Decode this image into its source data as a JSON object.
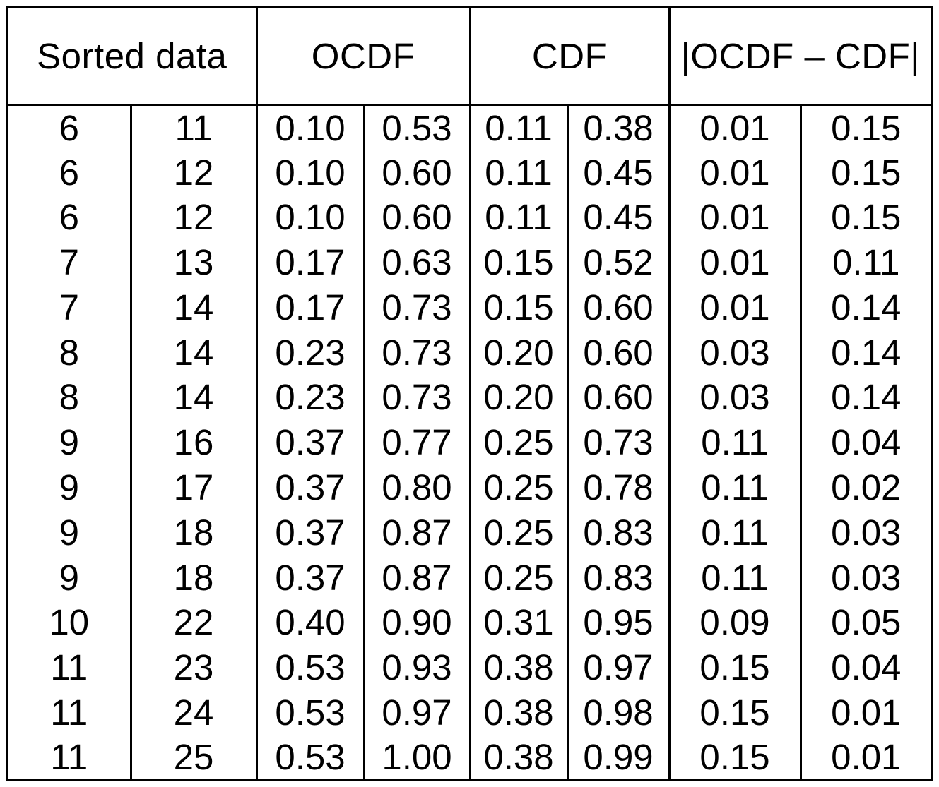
{
  "chart_data": {
    "type": "table",
    "title": "",
    "column_groups": [
      {
        "label": "Sorted data"
      },
      {
        "label": "OCDF"
      },
      {
        "label": "CDF"
      },
      {
        "label": "|OCDF – CDF|"
      }
    ],
    "columns_per_group": 2,
    "rows": [
      [
        "6",
        "11",
        "0.10",
        "0.53",
        "0.11",
        "0.38",
        "0.01",
        "0.15"
      ],
      [
        "6",
        "12",
        "0.10",
        "0.60",
        "0.11",
        "0.45",
        "0.01",
        "0.15"
      ],
      [
        "6",
        "12",
        "0.10",
        "0.60",
        "0.11",
        "0.45",
        "0.01",
        "0.15"
      ],
      [
        "7",
        "13",
        "0.17",
        "0.63",
        "0.15",
        "0.52",
        "0.01",
        "0.11"
      ],
      [
        "7",
        "14",
        "0.17",
        "0.73",
        "0.15",
        "0.60",
        "0.01",
        "0.14"
      ],
      [
        "8",
        "14",
        "0.23",
        "0.73",
        "0.20",
        "0.60",
        "0.03",
        "0.14"
      ],
      [
        "8",
        "14",
        "0.23",
        "0.73",
        "0.20",
        "0.60",
        "0.03",
        "0.14"
      ],
      [
        "9",
        "16",
        "0.37",
        "0.77",
        "0.25",
        "0.73",
        "0.11",
        "0.04"
      ],
      [
        "9",
        "17",
        "0.37",
        "0.80",
        "0.25",
        "0.78",
        "0.11",
        "0.02"
      ],
      [
        "9",
        "18",
        "0.37",
        "0.87",
        "0.25",
        "0.83",
        "0.11",
        "0.03"
      ],
      [
        "9",
        "18",
        "0.37",
        "0.87",
        "0.25",
        "0.83",
        "0.11",
        "0.03"
      ],
      [
        "10",
        "22",
        "0.40",
        "0.90",
        "0.31",
        "0.95",
        "0.09",
        "0.05"
      ],
      [
        "11",
        "23",
        "0.53",
        "0.93",
        "0.38",
        "0.97",
        "0.15",
        "0.04"
      ],
      [
        "11",
        "24",
        "0.53",
        "0.97",
        "0.38",
        "0.98",
        "0.15",
        "0.01"
      ],
      [
        "11",
        "25",
        "0.53",
        "1.00",
        "0.38",
        "0.99",
        "0.15",
        "0.01"
      ]
    ]
  },
  "colors": {
    "border": "#000000",
    "text": "#000000",
    "background": "#ffffff"
  }
}
